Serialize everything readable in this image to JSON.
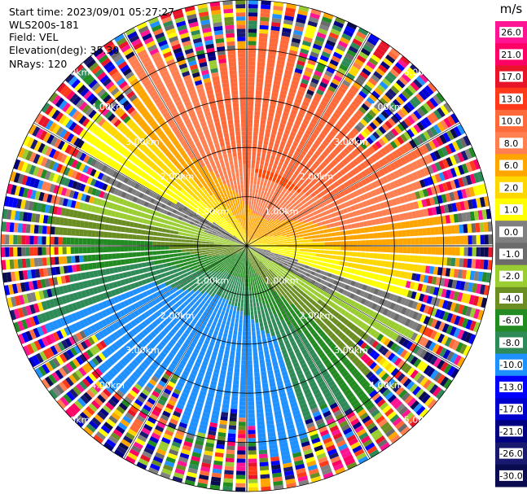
{
  "header": {
    "start_time": "Start time: 2023/09/01 05:27:27",
    "instrument": "WLS200s-181",
    "field": "Field: VEL",
    "elevation": "Elevation(deg): 35.30",
    "nrays": "NRays: 120"
  },
  "chart_data": {
    "type": "heatmap",
    "projection": "polar-ppi",
    "title": "",
    "field": "VEL",
    "units": "m/s",
    "n_rays": 120,
    "elevation_deg": 35.3,
    "max_range_km": 5.0,
    "range_rings": [
      {
        "value": 1,
        "label": "1.00km"
      },
      {
        "value": 2,
        "label": "2.00km"
      },
      {
        "value": 3,
        "label": "3.00km"
      },
      {
        "value": 4,
        "label": "4.00km"
      },
      {
        "value": 5,
        "label": "5.00km"
      }
    ],
    "spokes_deg": [
      0,
      30,
      60,
      90,
      120,
      150,
      180,
      210,
      240,
      270,
      300,
      330
    ],
    "colorbar": {
      "unit_label": "m/s",
      "ticks": [
        "26.0",
        "21.0",
        "17.0",
        "13.0",
        "10.0",
        "8.0",
        "6.0",
        "2.0",
        "1.0",
        "0.0",
        "-1.0",
        "-2.0",
        "-4.0",
        "-6.0",
        "-8.0",
        "-10.0",
        "-13.0",
        "-17.0",
        "-21.0",
        "-26.0",
        "-30.0"
      ],
      "colors": [
        "#ff1493",
        "#ff0066",
        "#e8142a",
        "#ff3a1a",
        "#ff6a3a",
        "#ff7f50",
        "#ffa500",
        "#ffd700",
        "#ffff00",
        "#808080",
        "#6b6b6b",
        "#9acd32",
        "#6b8e23",
        "#228b22",
        "#2e8b57",
        "#1e90ff",
        "#0000ff",
        "#0000cd",
        "#000080",
        "#191970",
        "#0b0b50"
      ]
    }
  }
}
